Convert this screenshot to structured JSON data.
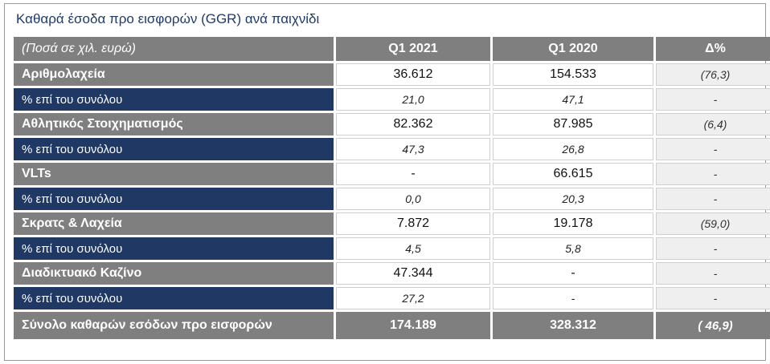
{
  "title": "Καθαρά έσοδα προ εισφορών (GGR) ανά παιχνίδι",
  "header": {
    "unit_label": "(Ποσά σε χιλ. ευρώ)",
    "col1": "Q1 2021",
    "col2": "Q1 2020",
    "col3": "Δ%"
  },
  "rows": [
    {
      "label": "Αριθμολαχεία",
      "q1_2021": "36.612",
      "q1_2020": "154.533",
      "delta": "(76,3)"
    },
    {
      "label": "% επί του συνόλου",
      "q1_2021": "21,0",
      "q1_2020": "47,1",
      "delta": "-"
    },
    {
      "label": "Αθλητικός Στοιχηματισμός",
      "q1_2021": "82.362",
      "q1_2020": "87.985",
      "delta": "(6,4)"
    },
    {
      "label": "% επί του συνόλου",
      "q1_2021": "47,3",
      "q1_2020": "26,8",
      "delta": "-"
    },
    {
      "label": "VLTs",
      "q1_2021": "-",
      "q1_2020": "66.615",
      "delta": "-"
    },
    {
      "label": "% επί του συνόλου",
      "q1_2021": "0,0",
      "q1_2020": "20,3",
      "delta": "-"
    },
    {
      "label": "Σκρατς & Λαχεία",
      "q1_2021": "7.872",
      "q1_2020": "19.178",
      "delta": "(59,0)"
    },
    {
      "label": "% επί του συνόλου",
      "q1_2021": "4,5",
      "q1_2020": "5,8",
      "delta": "-"
    },
    {
      "label": "Διαδικτυακό Καζίνο",
      "q1_2021": "47.344",
      "q1_2020": "-",
      "delta": "-"
    },
    {
      "label": "% επί του συνόλου",
      "q1_2021": "27,2",
      "q1_2020": "-",
      "delta": "-"
    }
  ],
  "total": {
    "label": "Σύνολο καθαρών εσόδων προ εισφορών",
    "q1_2021": "174.189",
    "q1_2020": "328.312",
    "delta": "( 46,9)"
  }
}
